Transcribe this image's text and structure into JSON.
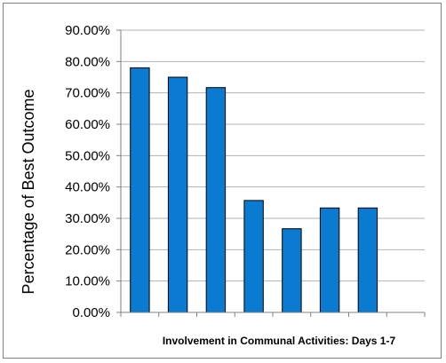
{
  "chart_data": {
    "type": "bar",
    "categories": [
      "",
      "",
      "",
      "",
      "",
      "",
      "",
      ""
    ],
    "values": [
      0.78,
      0.75,
      0.717,
      0.357,
      0.267,
      0.333,
      0.333,
      0
    ],
    "ylabel": "Percentage of Best Outcome",
    "xlabel": "Involvement in Communal Activities: Days 1-7",
    "ylim": [
      0,
      0.9
    ],
    "yticks": [
      "0.00%",
      "10.00%",
      "20.00%",
      "30.00%",
      "40.00%",
      "50.00%",
      "60.00%",
      "70.00%",
      "80.00%",
      "90.00%"
    ],
    "grid": true,
    "legend": "none",
    "colors": {
      "bar": "#0a7bd1",
      "bar_edge": "#000000",
      "grid": "#b3b3b3",
      "axis": "#808080"
    }
  }
}
